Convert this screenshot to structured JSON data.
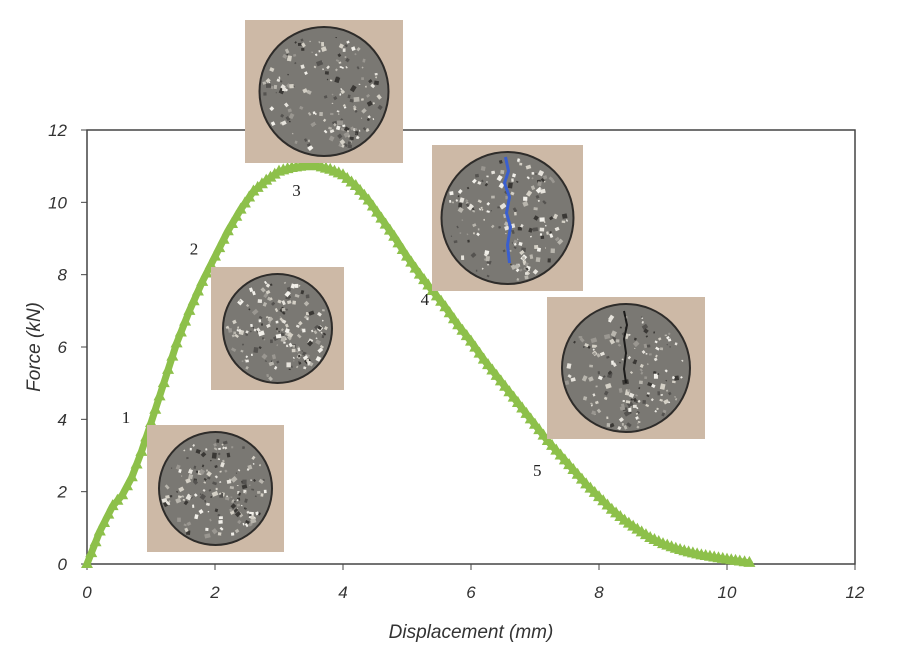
{
  "chart_data": {
    "type": "line",
    "title": "",
    "xlabel": "Displacement (mm)",
    "ylabel": "Force (kN)",
    "xlim": [
      0,
      12
    ],
    "ylim": [
      0,
      12
    ],
    "xticks": [
      0,
      2,
      4,
      6,
      8,
      10,
      12
    ],
    "yticks": [
      0,
      2,
      4,
      6,
      8,
      10,
      12
    ],
    "grid": false,
    "legend": "none",
    "series": [
      {
        "color": "#8dc04a",
        "marker": "triangle",
        "x": [
          0,
          0.2,
          0.4,
          0.55,
          0.7,
          0.85,
          1.0,
          1.2,
          1.4,
          1.6,
          1.8,
          2.0,
          2.2,
          2.4,
          2.6,
          2.8,
          3.0,
          3.2,
          3.4,
          3.6,
          3.8,
          4.0,
          4.2,
          4.4,
          4.6,
          4.8,
          5.0,
          5.2,
          5.4,
          5.6,
          5.8,
          6.0,
          6.2,
          6.4,
          6.6,
          6.8,
          7.0,
          7.2,
          7.4,
          7.6,
          7.8,
          8.0,
          8.2,
          8.4,
          8.6,
          8.8,
          9.0,
          9.2,
          9.4,
          9.6,
          9.8,
          10.0,
          10.2,
          10.35
        ],
        "y": [
          0,
          0.9,
          1.6,
          1.9,
          2.4,
          3.1,
          3.9,
          5.0,
          6.1,
          7.0,
          7.8,
          8.5,
          9.2,
          9.8,
          10.3,
          10.6,
          10.85,
          10.95,
          11.0,
          11.0,
          10.9,
          10.75,
          10.45,
          10.05,
          9.55,
          9.05,
          8.5,
          8.0,
          7.55,
          7.1,
          6.6,
          6.15,
          5.65,
          5.2,
          4.75,
          4.3,
          3.85,
          3.4,
          3.0,
          2.6,
          2.2,
          1.85,
          1.5,
          1.2,
          0.95,
          0.72,
          0.55,
          0.42,
          0.32,
          0.24,
          0.18,
          0.12,
          0.07,
          0.03
        ]
      }
    ],
    "annotations": [
      {
        "label": "1",
        "x": 0.95,
        "y": 3.85
      },
      {
        "label": "2",
        "x": 1.95,
        "y": 8.45
      },
      {
        "label": "3",
        "x": 3.55,
        "y": 10.95
      },
      {
        "label": "4",
        "x": 5.4,
        "y": 7.6
      },
      {
        "label": "5",
        "x": 7.25,
        "y": 3.1
      }
    ],
    "specimen_photos": [
      {
        "stage": "1",
        "crack": "none"
      },
      {
        "stage": "2",
        "crack": "none"
      },
      {
        "stage": "3",
        "crack": "none"
      },
      {
        "stage": "4",
        "crack": "full-height, blue"
      },
      {
        "stage": "5",
        "crack": "partial, dark"
      }
    ]
  }
}
